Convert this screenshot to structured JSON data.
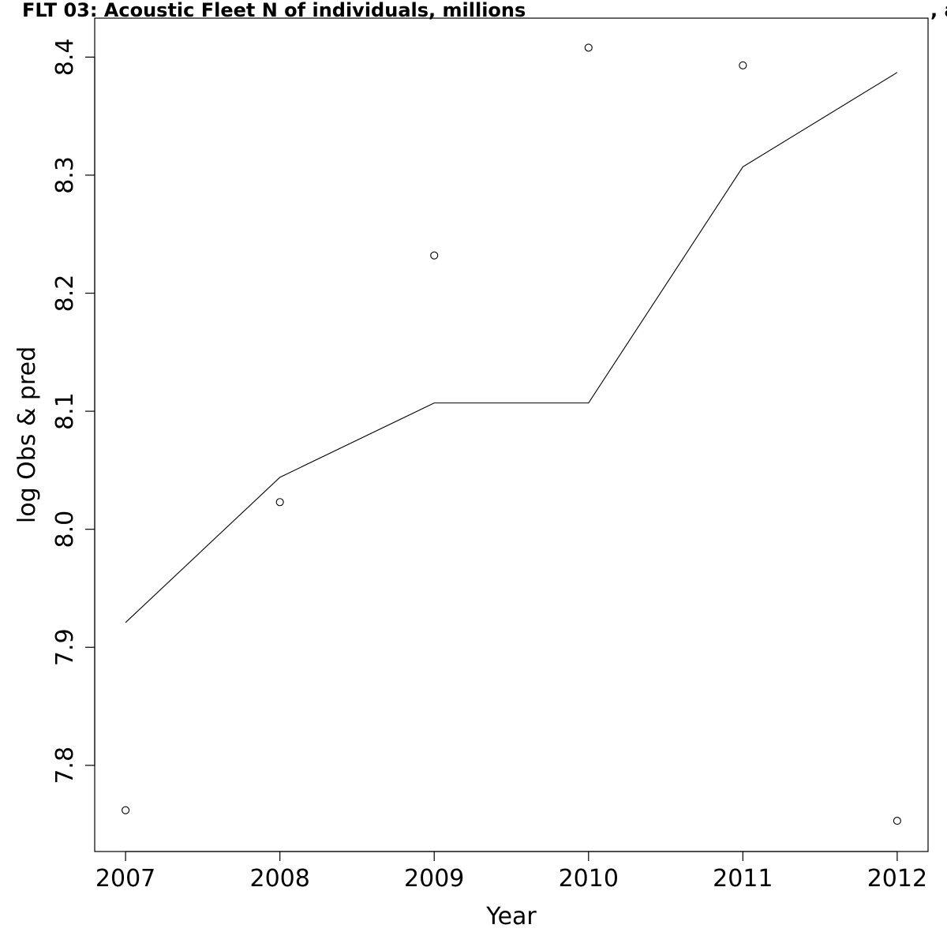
{
  "chart_data": {
    "type": "line",
    "title": "FLT 03: Acoustic Fleet   N of individuals, millions",
    "title_suffix": ", a",
    "xlabel": "Year",
    "ylabel": "log Obs & pred",
    "xlim": [
      2006.8,
      2012.2
    ],
    "ylim": [
      7.727,
      8.433
    ],
    "x_ticks": [
      2007,
      2008,
      2009,
      2010,
      2011,
      2012
    ],
    "y_ticks": [
      7.8,
      7.9,
      8.0,
      8.1,
      8.2,
      8.3,
      8.4
    ],
    "x_tick_labels": [
      "2007",
      "2008",
      "2009",
      "2010",
      "2011",
      "2012"
    ],
    "y_tick_labels": [
      "7.8",
      "7.9",
      "8.0",
      "8.1",
      "8.2",
      "8.3",
      "8.4"
    ],
    "grid": false,
    "series": [
      {
        "style": "points",
        "x": [
          2007,
          2008,
          2009,
          2010,
          2011,
          2012
        ],
        "values": [
          7.762,
          8.023,
          8.232,
          8.408,
          8.393,
          7.753
        ]
      },
      {
        "style": "line",
        "x": [
          2007,
          2008,
          2009,
          2010,
          2011,
          2012
        ],
        "values": [
          7.921,
          8.044,
          8.107,
          8.107,
          8.307,
          8.387
        ]
      }
    ]
  }
}
